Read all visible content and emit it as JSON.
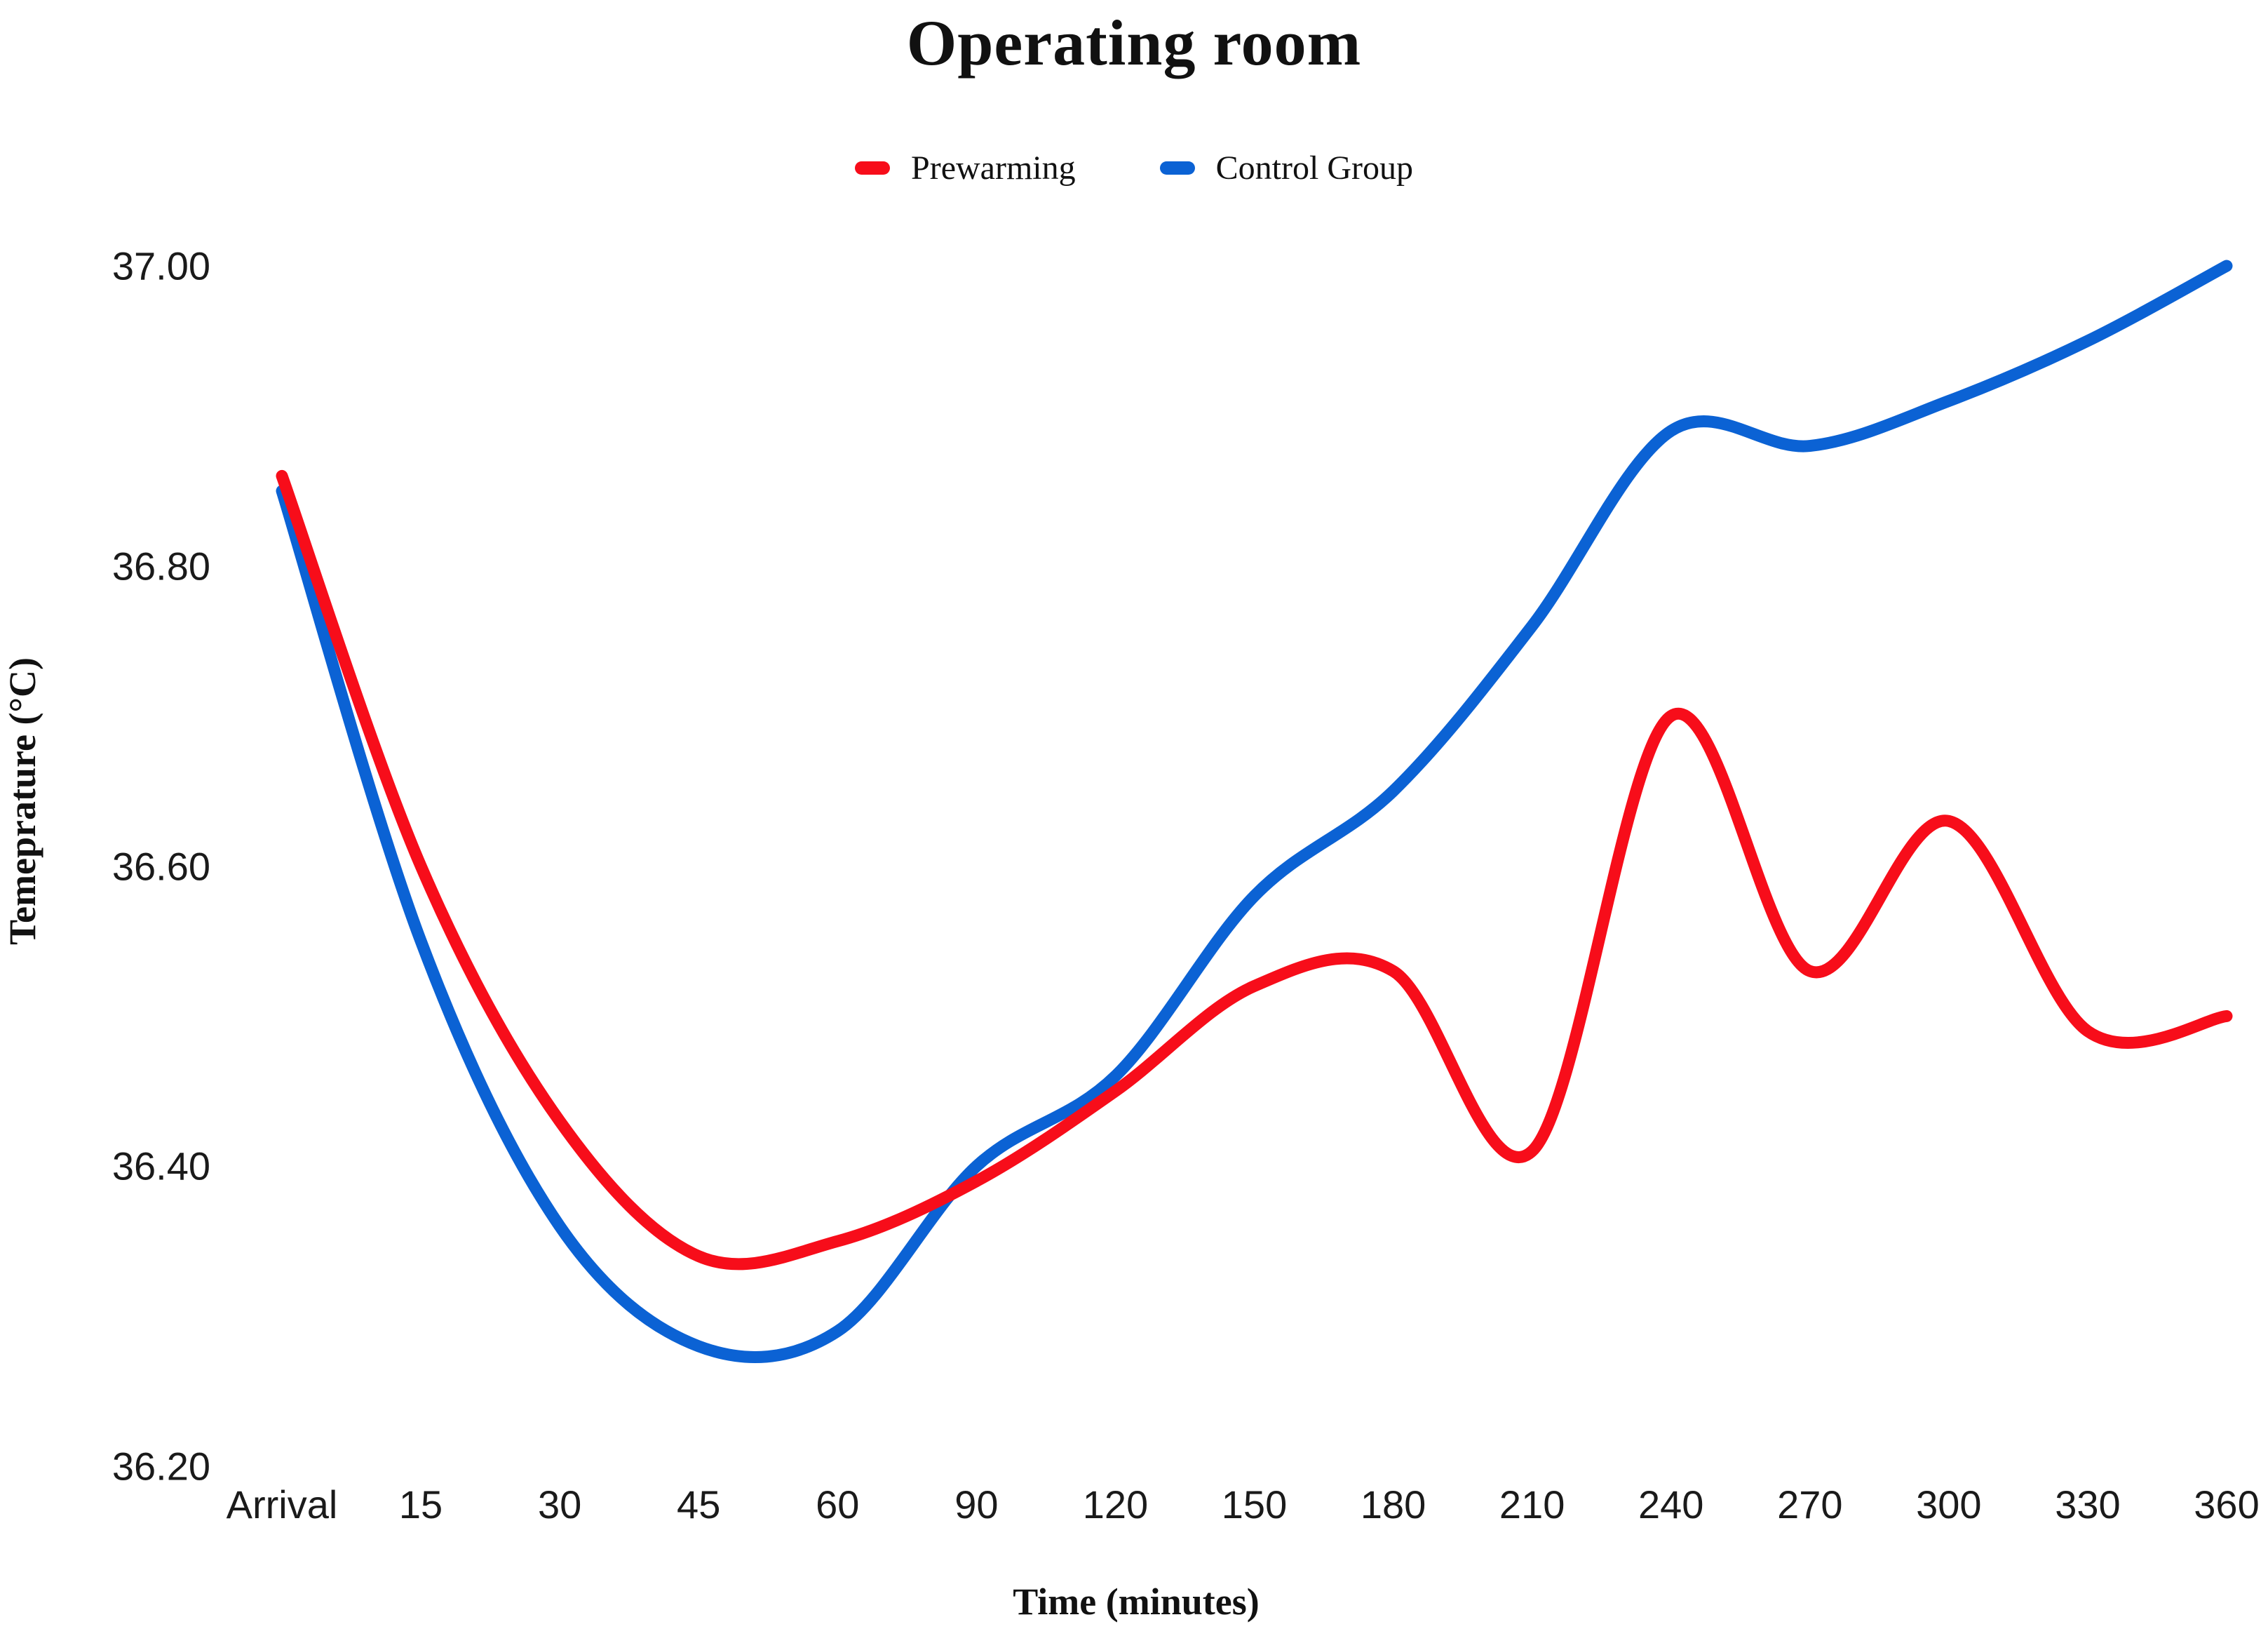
{
  "chart_data": {
    "type": "line",
    "title": "Operating room",
    "xlabel": "Time (minutes)",
    "ylabel": "Temeprature (°C)",
    "categories": [
      "Arrival",
      "15",
      "30",
      "45",
      "60",
      "90",
      "120",
      "150",
      "180",
      "210",
      "240",
      "270",
      "300",
      "330",
      "360"
    ],
    "y_ticks": [
      "37.00",
      "36.80",
      "36.60",
      "36.40",
      "36.20"
    ],
    "ylim": [
      36.2,
      37.0
    ],
    "grid": false,
    "legend_position": "top-center",
    "background_color": "#ffffff",
    "series": [
      {
        "name": "Control Group",
        "color": "#0b62d4",
        "values": [
          36.85,
          36.55,
          36.36,
          36.28,
          36.29,
          36.4,
          36.46,
          36.58,
          36.65,
          36.76,
          36.89,
          36.88,
          36.91,
          36.95,
          37.0
        ]
      },
      {
        "name": "Prewarming",
        "color": "#f70d1a",
        "values": [
          36.86,
          36.6,
          36.43,
          36.34,
          36.35,
          36.39,
          36.45,
          36.52,
          36.53,
          36.41,
          36.7,
          36.53,
          36.63,
          36.49,
          36.5
        ]
      }
    ]
  }
}
